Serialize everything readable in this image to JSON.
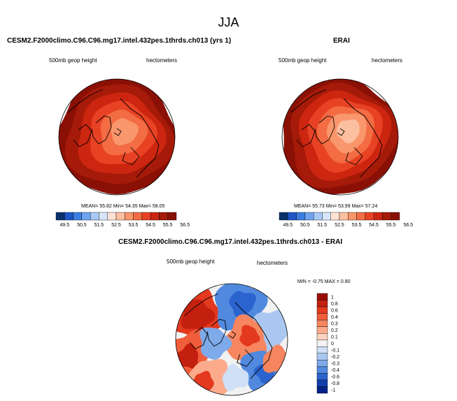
{
  "figure_title": "JJA",
  "colors": {
    "land_outline": "#000000",
    "zero_gray": "#f2f2f2"
  },
  "chart_data": [
    {
      "type": "heatmap",
      "projection": "north-polar-stereographic",
      "title": "CESM2.F2000climo.C96.C96.mg17.intel.432pes.1thrds.ch013 (yrs 1)",
      "field_label": "500mb geop height",
      "units_label": "hectometers",
      "stats": {
        "mean_label": "MEAN=",
        "mean": "55.82",
        "min_label": "Min=",
        "min": "54.35",
        "max_label": "Max=",
        "max": "58.05"
      },
      "colorbar": {
        "orientation": "horizontal",
        "ticks": [
          "49.5",
          "50.5",
          "51.5",
          "52.5",
          "53.5",
          "54.5",
          "55.5",
          "56.5"
        ],
        "colors": [
          "#08306b",
          "#1d56c6",
          "#3b7ee0",
          "#6fa5ef",
          "#a8c9f6",
          "#d6e6fb",
          "#fde2d3",
          "#fcbfa0",
          "#f9966b",
          "#f36c43",
          "#e84224",
          "#cc2610",
          "#a51a08",
          "#8a1005"
        ]
      },
      "field_levels": [
        "#f9966b",
        "#f36c43",
        "#e84224",
        "#cc2610",
        "#a51a08",
        "#8a1005"
      ]
    },
    {
      "type": "heatmap",
      "projection": "north-polar-stereographic",
      "title": "ERAI",
      "field_label": "500mb geop height",
      "units_label": "hectometers",
      "stats": {
        "mean_label": "MEAN=",
        "mean": "55.73",
        "min_label": "Min=",
        "min": "53.99",
        "max_label": "Max=",
        "max": "57.24"
      },
      "colorbar": {
        "orientation": "horizontal",
        "ticks": [
          "49.5",
          "50.5",
          "51.5",
          "52.5",
          "53.5",
          "54.5",
          "55.5",
          "56.5"
        ],
        "colors": [
          "#08306b",
          "#1d56c6",
          "#3b7ee0",
          "#6fa5ef",
          "#a8c9f6",
          "#d6e6fb",
          "#fde2d3",
          "#fcbfa0",
          "#f9966b",
          "#f36c43",
          "#e84224",
          "#cc2610",
          "#a51a08",
          "#8a1005"
        ]
      },
      "field_levels": [
        "#fcbfa0",
        "#f9966b",
        "#f36c43",
        "#e84224",
        "#cc2610",
        "#a51a08",
        "#8a1005"
      ]
    },
    {
      "type": "heatmap",
      "projection": "north-polar-stereographic",
      "title": "CESM2.F2000climo.C96.C96.mg17.intel.432pes.1thrds.ch013 - ERAI",
      "field_label": "500mb geop height",
      "units_label": "hectometers",
      "stats": {
        "min_label": "MIN =",
        "min": "-0.75",
        "max_label": "MAX =",
        "max": "0.80"
      },
      "colorbar": {
        "orientation": "vertical",
        "ticks": [
          "1",
          "0.8",
          "0.6",
          "0.4",
          "0.3",
          "0.2",
          "0.1",
          "0",
          "-0.1",
          "-0.2",
          "-0.3",
          "-0.4",
          "-0.6",
          "-0.8",
          "-1"
        ],
        "colors": [
          "#99100a",
          "#c4200f",
          "#e3391f",
          "#f15d3a",
          "#f7855f",
          "#fbab8c",
          "#fdd3bf",
          "#f2f2f2",
          "#cfe0f7",
          "#a9c7f1",
          "#7eaae9",
          "#5189df",
          "#2c64cf",
          "#123eb0",
          "#052188"
        ]
      }
    }
  ]
}
